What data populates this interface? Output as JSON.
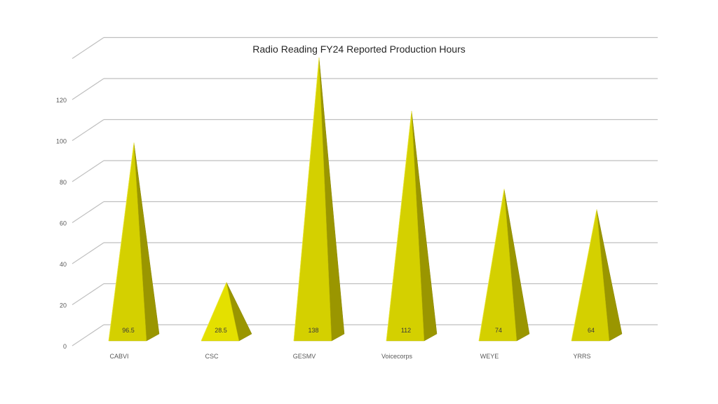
{
  "chart_data": {
    "type": "bar",
    "style": "3d-pyramid",
    "title": "Radio Reading FY24 Reported Production Hours",
    "xlabel": "",
    "ylabel": "",
    "categories": [
      "CABVI",
      "CSC",
      "GESMV",
      "Voicecorps",
      "WEYE",
      "YRRS"
    ],
    "values": [
      96.5,
      28.5,
      138,
      112,
      74,
      64
    ],
    "data_labels": [
      "96.5",
      "28.5",
      "138",
      "112",
      "74",
      "64"
    ],
    "ylim": [
      0,
      120
    ],
    "yticks": [
      "0",
      "20",
      "40",
      "60",
      "80",
      "100",
      "120"
    ],
    "grid": true,
    "legend": "none",
    "colors": {
      "front": "#d4d000",
      "front_highlight": "#e4e000",
      "side": "#9a9600",
      "grid": "#bfbfbf",
      "text": "#595959"
    }
  }
}
